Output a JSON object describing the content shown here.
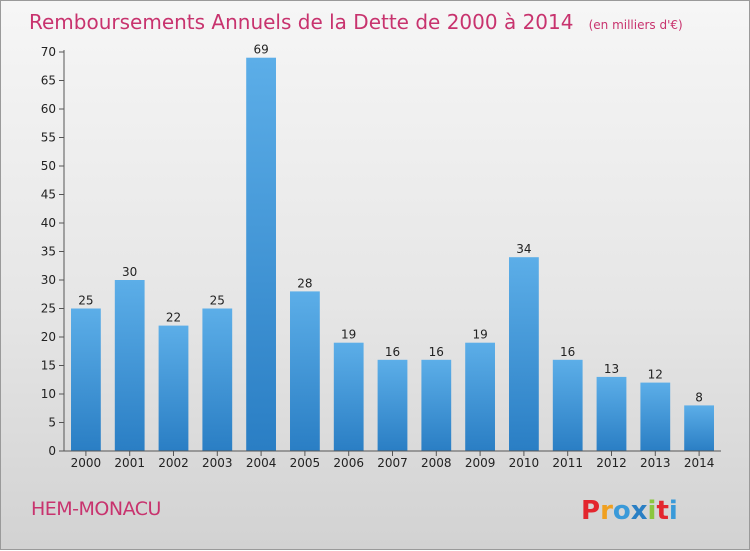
{
  "chart_data": {
    "type": "bar",
    "title": "Remboursements Annuels de la Dette de 2000 à 2014",
    "subtitle": "(en milliers d'€)",
    "categories": [
      "2000",
      "2001",
      "2002",
      "2003",
      "2004",
      "2005",
      "2006",
      "2007",
      "2008",
      "2009",
      "2010",
      "2011",
      "2012",
      "2013",
      "2014"
    ],
    "values": [
      25,
      30,
      22,
      25,
      69,
      28,
      19,
      16,
      16,
      19,
      34,
      16,
      13,
      12,
      8
    ],
    "ylim": [
      0,
      70
    ],
    "yticks": [
      0,
      5,
      10,
      15,
      20,
      25,
      30,
      35,
      40,
      45,
      50,
      55,
      60,
      65,
      70
    ],
    "grid": false,
    "bar_color": "#3b8fd6",
    "xlabel": "",
    "ylabel": ""
  },
  "footer": {
    "commune": "HEM-MONACU",
    "brand": "Proxiti"
  },
  "colors": {
    "title": "#c8336e",
    "brand_letters": [
      "#e3262e",
      "#f0a020",
      "#3a9ad9",
      "#2a7fc4",
      "#8cc63f",
      "#e3262e",
      "#3a9ad9"
    ]
  }
}
